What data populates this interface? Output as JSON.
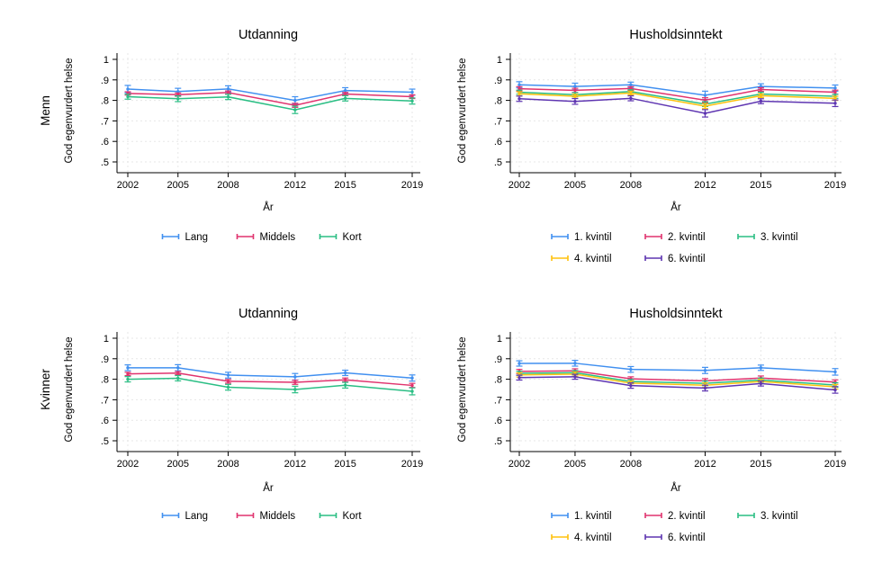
{
  "figure": {
    "background": "#FFFFFF"
  },
  "palette": {
    "blue": "#4190F0",
    "red": "#E0336E",
    "green": "#2ABE84",
    "yellow": "#FFC20E",
    "purple": "#5E35B1",
    "grid": "#E7E7E7",
    "axis": "#000000",
    "text": "#000000"
  },
  "rows": [
    {
      "label": "Menn"
    },
    {
      "label": "Kvinner"
    }
  ],
  "chart_data": [
    {
      "type": "line",
      "row_label": "Menn",
      "title": "Utdanning",
      "xlabel": "År",
      "ylabel": "God egenvurdert helse",
      "x": [
        2002,
        2005,
        2008,
        2012,
        2015,
        2019
      ],
      "xtick_labels": [
        "2002",
        "2005",
        "2008",
        "2012",
        "2015",
        "2019"
      ],
      "ytick_values": [
        0.5,
        0.6,
        0.7,
        0.8,
        0.9,
        1
      ],
      "ytick_labels": [
        ".5",
        ".6",
        ".7",
        ".8",
        ".9",
        "1"
      ],
      "ylim": [
        0.5,
        1
      ],
      "grid": true,
      "error_bars": true,
      "legend_position": "below",
      "legend_rows": [
        [
          0,
          1,
          2
        ]
      ],
      "series": [
        {
          "name": "Lang",
          "color": "blue",
          "values": [
            0.855,
            0.843,
            0.856,
            0.8,
            0.848,
            0.84
          ],
          "ci": [
            0.018,
            0.016,
            0.015,
            0.018,
            0.014,
            0.015
          ]
        },
        {
          "name": "Middels",
          "color": "red",
          "values": [
            0.834,
            0.828,
            0.838,
            0.776,
            0.831,
            0.818
          ],
          "ci": [
            0.008,
            0.008,
            0.008,
            0.01,
            0.008,
            0.009
          ]
        },
        {
          "name": "Kort",
          "color": "green",
          "values": [
            0.818,
            0.808,
            0.817,
            0.754,
            0.81,
            0.797
          ],
          "ci": [
            0.012,
            0.014,
            0.013,
            0.018,
            0.013,
            0.015
          ]
        }
      ]
    },
    {
      "type": "line",
      "row_label": "Menn",
      "title": "Husholdsinntekt",
      "xlabel": "År",
      "ylabel": "God egenvurdert helse",
      "x": [
        2002,
        2005,
        2008,
        2012,
        2015,
        2019
      ],
      "xtick_labels": [
        "2002",
        "2005",
        "2008",
        "2012",
        "2015",
        "2019"
      ],
      "ytick_values": [
        0.5,
        0.6,
        0.7,
        0.8,
        0.9,
        1
      ],
      "ytick_labels": [
        ".5",
        ".6",
        ".7",
        ".8",
        ".9",
        "1"
      ],
      "ylim": [
        0.5,
        1
      ],
      "grid": true,
      "error_bars": true,
      "legend_position": "below",
      "legend_rows": [
        [
          0,
          1,
          2
        ],
        [
          3,
          4
        ]
      ],
      "series": [
        {
          "name": "1. kvintil",
          "color": "blue",
          "values": [
            0.876,
            0.868,
            0.876,
            0.825,
            0.868,
            0.86
          ],
          "ci": [
            0.015,
            0.016,
            0.013,
            0.02,
            0.013,
            0.015
          ]
        },
        {
          "name": "2. kvintil",
          "color": "red",
          "values": [
            0.857,
            0.849,
            0.858,
            0.801,
            0.853,
            0.84
          ],
          "ci": [
            0.01,
            0.01,
            0.009,
            0.012,
            0.009,
            0.01
          ]
        },
        {
          "name": "3. kvintil",
          "color": "green",
          "values": [
            0.84,
            0.828,
            0.843,
            0.782,
            0.831,
            0.82
          ],
          "ci": [
            0.01,
            0.01,
            0.009,
            0.012,
            0.009,
            0.01
          ]
        },
        {
          "name": "4. kvintil",
          "color": "yellow",
          "values": [
            0.832,
            0.82,
            0.836,
            0.772,
            0.823,
            0.81
          ],
          "ci": [
            0.01,
            0.01,
            0.009,
            0.012,
            0.009,
            0.01
          ]
        },
        {
          "name": "6. kvintil",
          "color": "purple",
          "values": [
            0.808,
            0.795,
            0.81,
            0.737,
            0.796,
            0.786
          ],
          "ci": [
            0.013,
            0.014,
            0.012,
            0.018,
            0.012,
            0.016
          ]
        }
      ]
    },
    {
      "type": "line",
      "row_label": "Kvinner",
      "title": "Utdanning",
      "xlabel": "År",
      "ylabel": "God egenvurdert helse",
      "x": [
        2002,
        2005,
        2008,
        2012,
        2015,
        2019
      ],
      "xtick_labels": [
        "2002",
        "2005",
        "2008",
        "2012",
        "2015",
        "2019"
      ],
      "ytick_values": [
        0.5,
        0.6,
        0.7,
        0.8,
        0.9,
        1
      ],
      "ytick_labels": [
        ".5",
        ".6",
        ".7",
        ".8",
        ".9",
        "1"
      ],
      "ylim": [
        0.5,
        1
      ],
      "grid": true,
      "error_bars": true,
      "legend_position": "below",
      "legend_rows": [
        [
          0,
          1,
          2
        ]
      ],
      "series": [
        {
          "name": "Lang",
          "color": "blue",
          "values": [
            0.856,
            0.856,
            0.82,
            0.812,
            0.831,
            0.806
          ],
          "ci": [
            0.014,
            0.015,
            0.014,
            0.016,
            0.013,
            0.015
          ]
        },
        {
          "name": "Middels",
          "color": "red",
          "values": [
            0.826,
            0.83,
            0.79,
            0.785,
            0.797,
            0.77
          ],
          "ci": [
            0.008,
            0.008,
            0.009,
            0.01,
            0.009,
            0.01
          ]
        },
        {
          "name": "Kort",
          "color": "green",
          "values": [
            0.8,
            0.805,
            0.761,
            0.75,
            0.771,
            0.741
          ],
          "ci": [
            0.013,
            0.013,
            0.014,
            0.016,
            0.014,
            0.017
          ]
        }
      ]
    },
    {
      "type": "line",
      "row_label": "Kvinner",
      "title": "Husholdsinntekt",
      "xlabel": "År",
      "ylabel": "God egenvurdert helse",
      "x": [
        2002,
        2005,
        2008,
        2012,
        2015,
        2019
      ],
      "xtick_labels": [
        "2002",
        "2005",
        "2008",
        "2012",
        "2015",
        "2019"
      ],
      "ytick_values": [
        0.5,
        0.6,
        0.7,
        0.8,
        0.9,
        1
      ],
      "ytick_labels": [
        ".5",
        ".6",
        ".7",
        ".8",
        ".9",
        "1"
      ],
      "ylim": [
        0.5,
        1
      ],
      "grid": true,
      "error_bars": true,
      "legend_position": "below",
      "legend_rows": [
        [
          0,
          1,
          2
        ],
        [
          3,
          4
        ]
      ],
      "series": [
        {
          "name": "1. kvintil",
          "color": "blue",
          "values": [
            0.877,
            0.878,
            0.848,
            0.843,
            0.856,
            0.836
          ],
          "ci": [
            0.013,
            0.014,
            0.014,
            0.015,
            0.013,
            0.016
          ]
        },
        {
          "name": "2. kvintil",
          "color": "red",
          "values": [
            0.838,
            0.841,
            0.802,
            0.792,
            0.806,
            0.786
          ],
          "ci": [
            0.01,
            0.01,
            0.01,
            0.011,
            0.01,
            0.011
          ]
        },
        {
          "name": "3. kvintil",
          "color": "green",
          "values": [
            0.829,
            0.832,
            0.789,
            0.78,
            0.796,
            0.772
          ],
          "ci": [
            0.01,
            0.01,
            0.01,
            0.011,
            0.01,
            0.011
          ]
        },
        {
          "name": "4. kvintil",
          "color": "yellow",
          "values": [
            0.821,
            0.825,
            0.781,
            0.771,
            0.789,
            0.763
          ],
          "ci": [
            0.01,
            0.01,
            0.01,
            0.011,
            0.01,
            0.011
          ]
        },
        {
          "name": "6. kvintil",
          "color": "purple",
          "values": [
            0.808,
            0.812,
            0.769,
            0.757,
            0.779,
            0.748
          ],
          "ci": [
            0.012,
            0.012,
            0.013,
            0.014,
            0.012,
            0.016
          ]
        }
      ]
    }
  ]
}
